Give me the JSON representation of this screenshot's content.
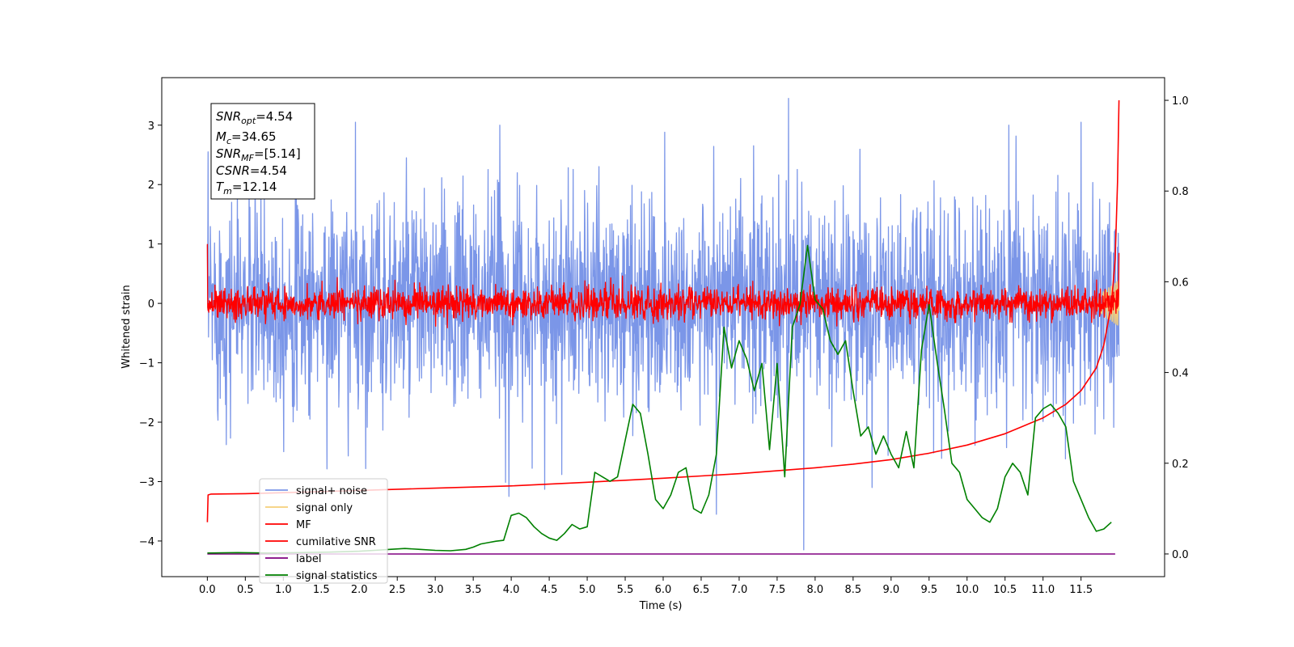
{
  "chart_data": {
    "type": "line",
    "xlabel": "Time (s)",
    "ylabel_left": "Whitened strain",
    "xlim": [
      -0.6,
      12.6
    ],
    "ylim_left": [
      -4.6,
      3.8
    ],
    "ylim_right": [
      -0.05,
      1.05
    ],
    "x_ticks": [
      0.0,
      0.5,
      1.0,
      1.5,
      2.0,
      2.5,
      3.0,
      3.5,
      4.0,
      4.5,
      5.0,
      5.5,
      6.0,
      6.5,
      7.0,
      7.5,
      8.0,
      8.5,
      9.0,
      9.5,
      10.0,
      10.5,
      11.0,
      11.5
    ],
    "x_tick_labels": [
      "0.0",
      "0.5",
      "1.0",
      "1.5",
      "2.0",
      "2.5",
      "3.0",
      "3.5",
      "4.0",
      "4.5",
      "5.0",
      "5.5",
      "6.0",
      "6.5",
      "7.0",
      "7.5",
      "8.0",
      "8.5",
      "9.0",
      "9.5",
      "10.0",
      "10.5",
      "11.0",
      "11.5"
    ],
    "y_left_ticks": [
      -4,
      -3,
      -2,
      -1,
      0,
      1,
      2,
      3
    ],
    "y_left_tick_labels": [
      "−4",
      "−3",
      "−2",
      "−1",
      "0",
      "1",
      "2",
      "3"
    ],
    "y_right_ticks": [
      0.0,
      0.2,
      0.4,
      0.6,
      0.8,
      1.0
    ],
    "y_right_tick_labels": [
      "0.0",
      "0.2",
      "0.4",
      "0.6",
      "0.8",
      "1.0"
    ],
    "info_box": {
      "snr_opt": {
        "base": "SNR",
        "sub": "opt",
        "value": "=4.54"
      },
      "mc": {
        "base": "M",
        "sub": "c",
        "value": "=34.65"
      },
      "snr_mf": {
        "base": "SNR",
        "sub": "MF",
        "value": "=[5.14]"
      },
      "csnr": {
        "base": "CSNR",
        "sub": "",
        "value": "=4.54"
      },
      "tm": {
        "base": "T",
        "sub": "m",
        "value": "=12.14"
      }
    },
    "legend": {
      "placement": "lower-left",
      "entries": [
        {
          "label": "signal+ noise",
          "color": "#7b96e8"
        },
        {
          "label": "signal only",
          "color": "#f5cf7a"
        },
        {
          "label": "MF",
          "color": "#ff0000"
        },
        {
          "label": "cumilative SNR",
          "color": "#ff0000"
        },
        {
          "label": "label",
          "color": "#800080"
        },
        {
          "label": "signal statistics",
          "color": "#008000"
        }
      ]
    },
    "series": [
      {
        "name": "signal+ noise",
        "axis": "left",
        "color": "#7b96e8",
        "style": "noise",
        "x_range": [
          0.0,
          12.0
        ],
        "std": 0.9,
        "outliers": [
          {
            "x": 7.65,
            "y": 3.45
          },
          {
            "x": 7.85,
            "y": -4.15
          },
          {
            "x": 3.97,
            "y": -3.25
          },
          {
            "x": 6.7,
            "y": -3.55
          },
          {
            "x": 8.75,
            "y": -3.1
          },
          {
            "x": 1.95,
            "y": 3.05
          },
          {
            "x": 3.85,
            "y": 3.0
          },
          {
            "x": 11.5,
            "y": 3.05
          },
          {
            "x": 10.55,
            "y": 3.0
          }
        ]
      },
      {
        "name": "signal only",
        "axis": "left",
        "color": "#f5cf7a",
        "style": "chirp",
        "x_range": [
          11.6,
          12.0
        ],
        "amplitude": 0.4
      },
      {
        "name": "MF",
        "axis": "left",
        "color": "#ff0000",
        "style": "noise",
        "x_range": [
          0.0,
          12.0
        ],
        "std": 0.13,
        "start_y": 1.0,
        "end_y": 0.85
      },
      {
        "name": "cumilative SNR",
        "axis": "right",
        "color": "#ff0000",
        "x": [
          0.0,
          0.01,
          0.05,
          0.5,
          1.0,
          2.0,
          3.0,
          4.0,
          5.0,
          6.0,
          7.0,
          8.0,
          8.5,
          9.0,
          9.5,
          10.0,
          10.5,
          11.0,
          11.3,
          11.5,
          11.7,
          11.8,
          11.9,
          11.95,
          11.98,
          12.0
        ],
        "values": [
          0.07,
          0.13,
          0.132,
          0.133,
          0.135,
          0.14,
          0.145,
          0.15,
          0.158,
          0.167,
          0.177,
          0.19,
          0.198,
          0.208,
          0.222,
          0.24,
          0.265,
          0.3,
          0.33,
          0.36,
          0.41,
          0.46,
          0.55,
          0.65,
          0.82,
          1.0
        ]
      },
      {
        "name": "label",
        "axis": "right",
        "color": "#800080",
        "x": [
          0.0,
          11.95
        ],
        "values": [
          0.0,
          0.0
        ]
      },
      {
        "name": "signal statistics",
        "axis": "right",
        "color": "#008000",
        "x": [
          0.0,
          0.4,
          0.8,
          1.2,
          1.6,
          2.0,
          2.2,
          2.4,
          2.6,
          2.8,
          3.0,
          3.2,
          3.4,
          3.5,
          3.6,
          3.7,
          3.8,
          3.9,
          4.0,
          4.1,
          4.2,
          4.3,
          4.4,
          4.5,
          4.6,
          4.7,
          4.8,
          4.9,
          5.0,
          5.1,
          5.2,
          5.3,
          5.4,
          5.5,
          5.6,
          5.7,
          5.8,
          5.9,
          6.0,
          6.1,
          6.2,
          6.3,
          6.4,
          6.5,
          6.6,
          6.7,
          6.8,
          6.9,
          7.0,
          7.1,
          7.2,
          7.3,
          7.4,
          7.5,
          7.6,
          7.7,
          7.8,
          7.9,
          8.0,
          8.1,
          8.2,
          8.3,
          8.4,
          8.5,
          8.6,
          8.7,
          8.8,
          8.9,
          9.0,
          9.1,
          9.2,
          9.3,
          9.4,
          9.5,
          9.6,
          9.7,
          9.8,
          9.9,
          10.0,
          10.1,
          10.2,
          10.3,
          10.4,
          10.5,
          10.6,
          10.7,
          10.8,
          10.9,
          11.0,
          11.1,
          11.2,
          11.3,
          11.4,
          11.5,
          11.6,
          11.7,
          11.8,
          11.9
        ],
        "values": [
          0.002,
          0.003,
          0.002,
          0.003,
          0.004,
          0.006,
          0.008,
          0.01,
          0.012,
          0.01,
          0.008,
          0.007,
          0.01,
          0.015,
          0.022,
          0.025,
          0.028,
          0.03,
          0.085,
          0.09,
          0.08,
          0.06,
          0.045,
          0.035,
          0.03,
          0.045,
          0.065,
          0.055,
          0.06,
          0.18,
          0.17,
          0.16,
          0.17,
          0.25,
          0.33,
          0.31,
          0.22,
          0.12,
          0.1,
          0.13,
          0.18,
          0.19,
          0.1,
          0.09,
          0.13,
          0.22,
          0.5,
          0.41,
          0.47,
          0.43,
          0.36,
          0.42,
          0.23,
          0.42,
          0.17,
          0.5,
          0.55,
          0.68,
          0.56,
          0.54,
          0.47,
          0.44,
          0.47,
          0.36,
          0.26,
          0.28,
          0.22,
          0.26,
          0.22,
          0.19,
          0.27,
          0.19,
          0.45,
          0.55,
          0.43,
          0.32,
          0.2,
          0.18,
          0.12,
          0.1,
          0.08,
          0.07,
          0.1,
          0.17,
          0.2,
          0.18,
          0.13,
          0.3,
          0.32,
          0.33,
          0.31,
          0.28,
          0.16,
          0.12,
          0.08,
          0.05,
          0.055,
          0.07
        ]
      }
    ]
  }
}
